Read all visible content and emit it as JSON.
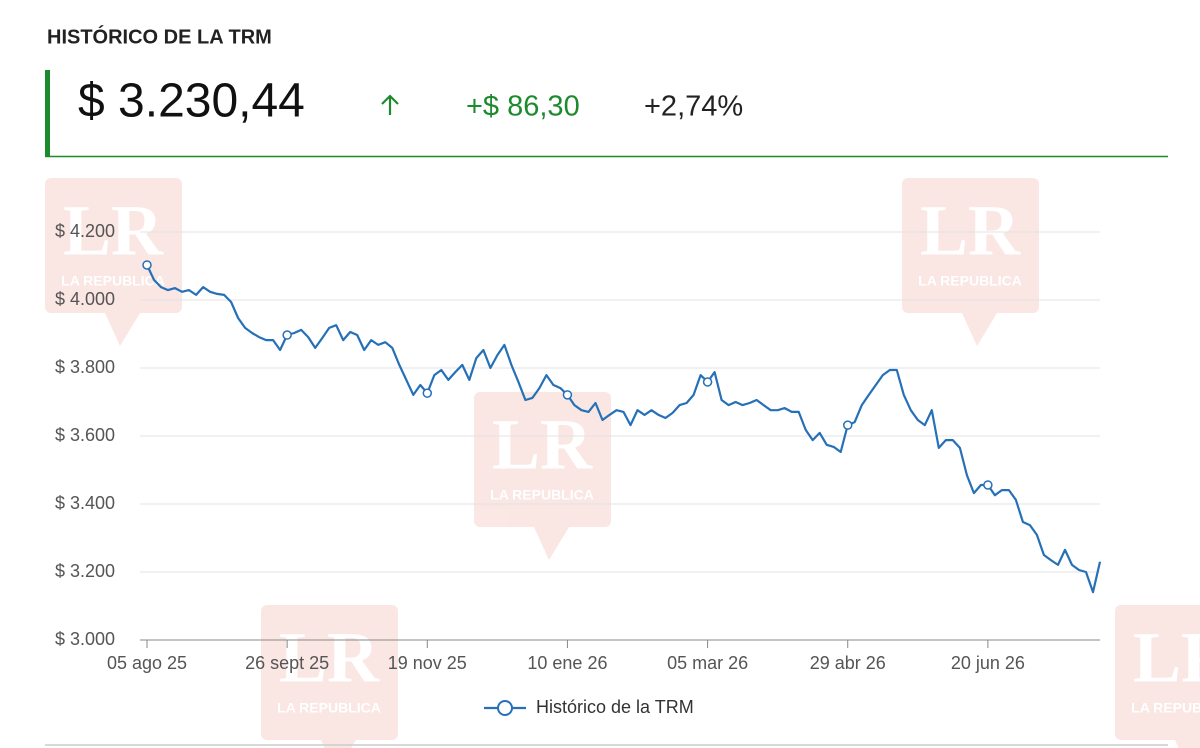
{
  "header": {
    "title": "HISTÓRICO DE LA TRM",
    "price": "$ 3.230,44",
    "change": "+$ 86,30",
    "change_pct": "+2,74%"
  },
  "watermark": {
    "logo": "LR",
    "name": "LA REPUBLICA"
  },
  "chart_data": {
    "type": "line",
    "categories": [
      "05 ago 25",
      null,
      null,
      null,
      null,
      null,
      null,
      null,
      null,
      null,
      null,
      null,
      null,
      null,
      null,
      null,
      null,
      null,
      null,
      null,
      "26 sept 25",
      null,
      null,
      null,
      null,
      null,
      null,
      null,
      null,
      null,
      null,
      null,
      null,
      null,
      null,
      null,
      null,
      null,
      null,
      null,
      "19 nov 25",
      null,
      null,
      null,
      null,
      null,
      null,
      null,
      null,
      null,
      null,
      null,
      null,
      null,
      null,
      null,
      null,
      null,
      null,
      null,
      "10 ene 26",
      null,
      null,
      null,
      null,
      null,
      null,
      null,
      null,
      null,
      null,
      null,
      null,
      null,
      null,
      null,
      null,
      null,
      null,
      null,
      "05 mar 26",
      null,
      null,
      null,
      null,
      null,
      null,
      null,
      null,
      null,
      null,
      null,
      null,
      null,
      null,
      null,
      null,
      null,
      null,
      null,
      "29 abr 26",
      null,
      null,
      null,
      null,
      null,
      null,
      null,
      null,
      null,
      null,
      null,
      null,
      null,
      null,
      null,
      null,
      null,
      null,
      null,
      "20 jun 26",
      null,
      null,
      null,
      null,
      null,
      null,
      null,
      null,
      null,
      null,
      null,
      null,
      null,
      null,
      null,
      null
    ],
    "series": [
      {
        "name": "Histórico de la TRM",
        "color": "#2670b8",
        "values": [
          4103,
          4059,
          4038,
          4029,
          4035,
          4024,
          4029,
          4015,
          4038,
          4024,
          4018,
          4015,
          3994,
          3947,
          3918,
          3903,
          3891,
          3882,
          3882,
          3853,
          3897,
          3903,
          3912,
          3891,
          3859,
          3888,
          3918,
          3926,
          3882,
          3906,
          3897,
          3853,
          3882,
          3868,
          3876,
          3859,
          3809,
          3765,
          3721,
          3750,
          3726,
          3779,
          3794,
          3765,
          3788,
          3809,
          3765,
          3829,
          3853,
          3800,
          3838,
          3868,
          3809,
          3759,
          3706,
          3712,
          3741,
          3779,
          3750,
          3741,
          3721,
          3691,
          3676,
          3671,
          3697,
          3647,
          3662,
          3676,
          3671,
          3632,
          3676,
          3662,
          3676,
          3662,
          3653,
          3668,
          3691,
          3697,
          3721,
          3779,
          3759,
          3788,
          3706,
          3691,
          3700,
          3691,
          3697,
          3706,
          3691,
          3676,
          3676,
          3682,
          3671,
          3671,
          3618,
          3588,
          3609,
          3574,
          3568,
          3553,
          3632,
          3641,
          3691,
          3721,
          3750,
          3779,
          3794,
          3794,
          3721,
          3676,
          3647,
          3632,
          3676,
          3565,
          3588,
          3588,
          3565,
          3485,
          3432,
          3456,
          3456,
          3426,
          3441,
          3441,
          3412,
          3347,
          3338,
          3309,
          3250,
          3235,
          3221,
          3265,
          3221,
          3206,
          3200,
          3141,
          3230
        ]
      }
    ],
    "ylim": [
      3000,
      4200
    ],
    "yticks": [
      {
        "value": 3000,
        "label": "$ 3.000"
      },
      {
        "value": 3200,
        "label": "$ 3.200"
      },
      {
        "value": 3400,
        "label": "$ 3.400"
      },
      {
        "value": 3600,
        "label": "$ 3.600"
      },
      {
        "value": 3800,
        "label": "$ 3.800"
      },
      {
        "value": 4000,
        "label": "$ 4.000"
      },
      {
        "value": 4200,
        "label": "$ 4.200"
      }
    ],
    "grid": true,
    "legend": "bottom"
  }
}
